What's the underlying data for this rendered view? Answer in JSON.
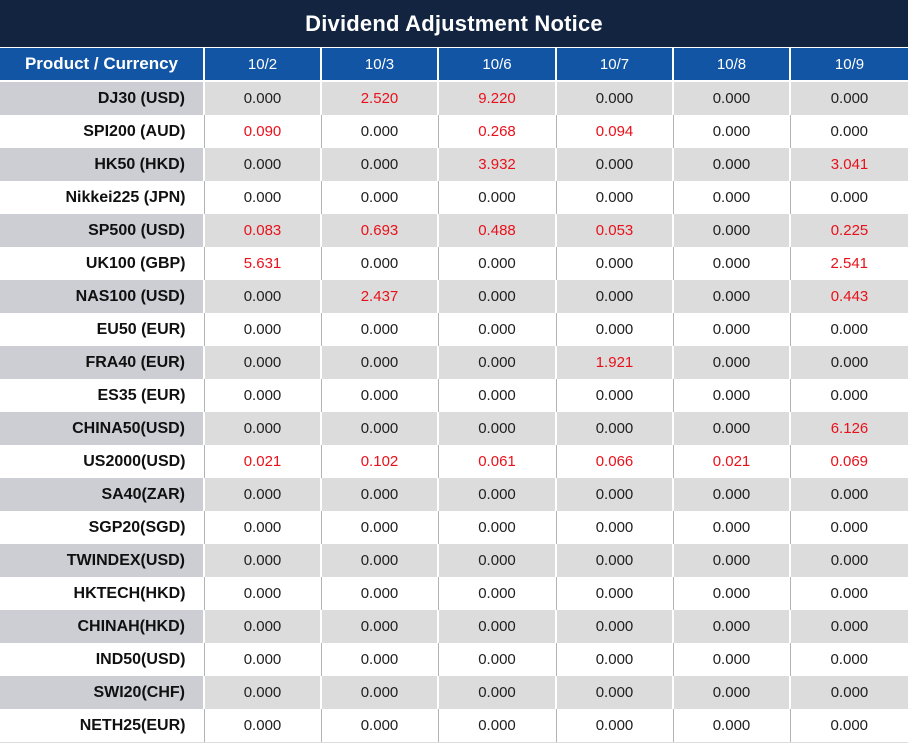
{
  "title": "Dividend Adjustment Notice",
  "colors": {
    "navy": "#122440",
    "blue": "#1355a5",
    "red": "#e8111a",
    "gray-row": "#dcdcdc",
    "gray-label": "#cdced4",
    "divider": "#b3b3b3"
  },
  "table": {
    "header_label": "Product / Currency",
    "date_columns": [
      "10/2",
      "10/3",
      "10/6",
      "10/7",
      "10/8",
      "10/9"
    ],
    "rows": [
      {
        "product": "DJ30 (USD)",
        "values": [
          "0.000",
          "2.520",
          "9.220",
          "0.000",
          "0.000",
          "0.000"
        ],
        "red": [
          false,
          true,
          true,
          false,
          false,
          false
        ]
      },
      {
        "product": "SPI200 (AUD)",
        "values": [
          "0.090",
          "0.000",
          "0.268",
          "0.094",
          "0.000",
          "0.000"
        ],
        "red": [
          true,
          false,
          true,
          true,
          false,
          false
        ]
      },
      {
        "product": "HK50 (HKD)",
        "values": [
          "0.000",
          "0.000",
          "3.932",
          "0.000",
          "0.000",
          "3.041"
        ],
        "red": [
          false,
          false,
          true,
          false,
          false,
          true
        ]
      },
      {
        "product": "Nikkei225 (JPN)",
        "values": [
          "0.000",
          "0.000",
          "0.000",
          "0.000",
          "0.000",
          "0.000"
        ],
        "red": [
          false,
          false,
          false,
          false,
          false,
          false
        ]
      },
      {
        "product": "SP500 (USD)",
        "values": [
          "0.083",
          "0.693",
          "0.488",
          "0.053",
          "0.000",
          "0.225"
        ],
        "red": [
          true,
          true,
          true,
          true,
          false,
          true
        ]
      },
      {
        "product": "UK100 (GBP)",
        "values": [
          "5.631",
          "0.000",
          "0.000",
          "0.000",
          "0.000",
          "2.541"
        ],
        "red": [
          true,
          false,
          false,
          false,
          false,
          true
        ]
      },
      {
        "product": "NAS100 (USD)",
        "values": [
          "0.000",
          "2.437",
          "0.000",
          "0.000",
          "0.000",
          "0.443"
        ],
        "red": [
          false,
          true,
          false,
          false,
          false,
          true
        ]
      },
      {
        "product": "EU50 (EUR)",
        "values": [
          "0.000",
          "0.000",
          "0.000",
          "0.000",
          "0.000",
          "0.000"
        ],
        "red": [
          false,
          false,
          false,
          false,
          false,
          false
        ]
      },
      {
        "product": "FRA40 (EUR)",
        "values": [
          "0.000",
          "0.000",
          "0.000",
          "1.921",
          "0.000",
          "0.000"
        ],
        "red": [
          false,
          false,
          false,
          true,
          false,
          false
        ]
      },
      {
        "product": "ES35 (EUR)",
        "values": [
          "0.000",
          "0.000",
          "0.000",
          "0.000",
          "0.000",
          "0.000"
        ],
        "red": [
          false,
          false,
          false,
          false,
          false,
          false
        ]
      },
      {
        "product": "CHINA50(USD)",
        "values": [
          "0.000",
          "0.000",
          "0.000",
          "0.000",
          "0.000",
          "6.126"
        ],
        "red": [
          false,
          false,
          false,
          false,
          false,
          true
        ]
      },
      {
        "product": "US2000(USD)",
        "values": [
          "0.021",
          "0.102",
          "0.061",
          "0.066",
          "0.021",
          "0.069"
        ],
        "red": [
          true,
          true,
          true,
          true,
          true,
          true
        ]
      },
      {
        "product": "SA40(ZAR)",
        "values": [
          "0.000",
          "0.000",
          "0.000",
          "0.000",
          "0.000",
          "0.000"
        ],
        "red": [
          false,
          false,
          false,
          false,
          false,
          false
        ]
      },
      {
        "product": "SGP20(SGD)",
        "values": [
          "0.000",
          "0.000",
          "0.000",
          "0.000",
          "0.000",
          "0.000"
        ],
        "red": [
          false,
          false,
          false,
          false,
          false,
          false
        ]
      },
      {
        "product": "TWINDEX(USD)",
        "values": [
          "0.000",
          "0.000",
          "0.000",
          "0.000",
          "0.000",
          "0.000"
        ],
        "red": [
          false,
          false,
          false,
          false,
          false,
          false
        ]
      },
      {
        "product": "HKTECH(HKD)",
        "values": [
          "0.000",
          "0.000",
          "0.000",
          "0.000",
          "0.000",
          "0.000"
        ],
        "red": [
          false,
          false,
          false,
          false,
          false,
          false
        ]
      },
      {
        "product": "CHINAH(HKD)",
        "values": [
          "0.000",
          "0.000",
          "0.000",
          "0.000",
          "0.000",
          "0.000"
        ],
        "red": [
          false,
          false,
          false,
          false,
          false,
          false
        ]
      },
      {
        "product": "IND50(USD)",
        "values": [
          "0.000",
          "0.000",
          "0.000",
          "0.000",
          "0.000",
          "0.000"
        ],
        "red": [
          false,
          false,
          false,
          false,
          false,
          false
        ]
      },
      {
        "product": "SWI20(CHF)",
        "values": [
          "0.000",
          "0.000",
          "0.000",
          "0.000",
          "0.000",
          "0.000"
        ],
        "red": [
          false,
          false,
          false,
          false,
          false,
          false
        ]
      },
      {
        "product": "NETH25(EUR)",
        "values": [
          "0.000",
          "0.000",
          "0.000",
          "0.000",
          "0.000",
          "0.000"
        ],
        "red": [
          false,
          false,
          false,
          false,
          false,
          false
        ]
      }
    ]
  }
}
